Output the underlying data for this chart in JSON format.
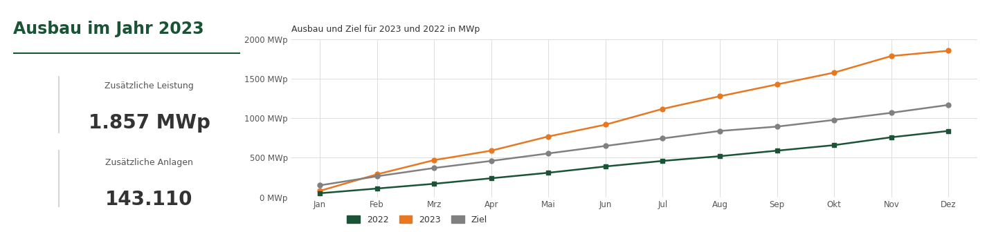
{
  "title": "Ausbau und Ziel für 2023 und 2022 in MWp",
  "left_title": "Ausbau im Jahr 2023",
  "label_leistung": "Zusätzliche Leistung",
  "value_leistung": "1.857 MWp",
  "label_anlagen": "Zusätzliche Anlagen",
  "value_anlagen": "143.110",
  "months": [
    "Jan",
    "Feb",
    "Mrz",
    "Apr",
    "Mai",
    "Jun",
    "Jul",
    "Aug",
    "Sep",
    "Okt",
    "Nov",
    "Dez"
  ],
  "series_2022": [
    50,
    110,
    170,
    240,
    310,
    390,
    460,
    520,
    590,
    660,
    760,
    840
  ],
  "series_2023": [
    80,
    290,
    470,
    590,
    770,
    920,
    1120,
    1280,
    1430,
    1580,
    1790,
    1857
  ],
  "series_ziel": [
    150,
    265,
    370,
    460,
    555,
    650,
    745,
    840,
    895,
    980,
    1070,
    1170
  ],
  "color_2022": "#1a5336",
  "color_2023": "#e87722",
  "color_ziel": "#808080",
  "ylim": [
    0,
    2000
  ],
  "yticks": [
    0,
    500,
    1000,
    1500,
    2000
  ],
  "ytick_labels": [
    "0 MWp",
    "500 MWp",
    "1000 MWp",
    "1500 MWp",
    "2000 MWp"
  ],
  "bg_color": "#ffffff",
  "grid_color": "#dddddd",
  "title_color": "#1a5336",
  "text_color": "#333333",
  "subtitle_color": "#555555"
}
